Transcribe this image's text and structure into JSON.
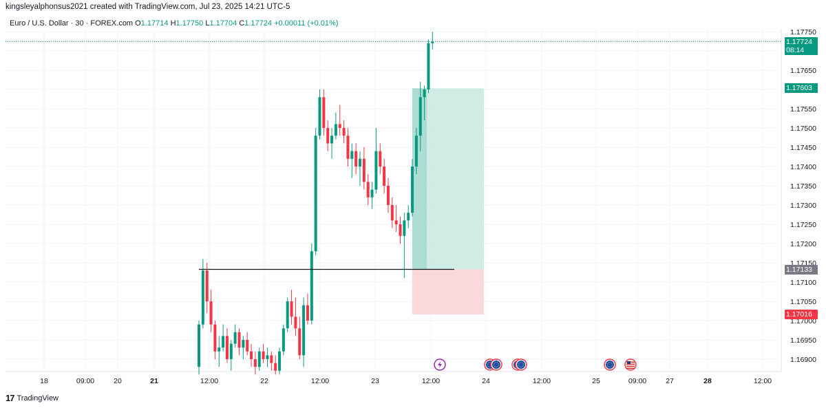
{
  "header": {
    "text": "kingsleyalphonsus2021 created with TradingView.com, Jul 23, 2025 14:21 UTC-5"
  },
  "legend": {
    "symbol": "Euro / U.S. Dollar · 30 · FOREX.com",
    "o_label": "O",
    "o_value": "1.17714",
    "h_label": "H",
    "h_value": "1.17750",
    "l_label": "L",
    "l_value": "1.17704",
    "c_label": "C",
    "c_value": "1.17724",
    "change": "+0.00011 (+0.01%)"
  },
  "footer": {
    "brand": "TradingView",
    "logo": "17"
  },
  "price_labels": {
    "last": {
      "price": "1.17724",
      "countdown": "08:14",
      "color": "#089981"
    },
    "target": {
      "price": "1.17603",
      "color": "#089981"
    },
    "entry": {
      "price": "1.17133",
      "color": "#787b86"
    },
    "stop": {
      "price": "1.17016",
      "color": "#f23645"
    }
  },
  "colors": {
    "up": "#089981",
    "down": "#f23645",
    "profit_zone": "#c8e9df",
    "loss_zone": "#fbd5d7",
    "grid": "#f0f3fa"
  },
  "chart_data": {
    "type": "candlestick",
    "symbol": "EURUSD",
    "interval": "30",
    "ylim": [
      1.1685,
      1.1776
    ],
    "y_ticks": [
      "1.17750",
      "1.17700",
      "1.17650",
      "1.17600",
      "1.17550",
      "1.17500",
      "1.17450",
      "1.17400",
      "1.17350",
      "1.17300",
      "1.17250",
      "1.17200",
      "1.17150",
      "1.17100",
      "1.17050",
      "1.17000",
      "1.16950",
      "1.16900"
    ],
    "x_ticks": [
      "18",
      "09:00",
      "20",
      "21",
      "12:00",
      "22",
      "12:00",
      "23",
      "12:00",
      "24",
      "12:00",
      "25",
      "09:00",
      "27",
      "28",
      "12:00"
    ],
    "bold_x_ticks": [
      "21",
      "28"
    ],
    "current_price": 1.17724,
    "long_position": {
      "entry": 1.17133,
      "target": 1.17603,
      "stop": 1.17016
    },
    "horizontal_line": 1.17133,
    "event_markers": [
      "bolt-icon",
      "flag-eu-icon",
      "flag-eu-icon",
      "flag-eu-icon",
      "flag-eu-icon",
      "flag-eu-icon",
      "flag-us-icon"
    ],
    "candles": [
      [
        1.1688,
        1.17,
        1.1686,
        1.1699
      ],
      [
        1.1699,
        1.1716,
        1.1698,
        1.1713
      ],
      [
        1.1713,
        1.1715,
        1.1702,
        1.1705
      ],
      [
        1.1705,
        1.1708,
        1.1697,
        1.1699
      ],
      [
        1.1699,
        1.17,
        1.169,
        1.1692
      ],
      [
        1.1692,
        1.1696,
        1.1688,
        1.1693
      ],
      [
        1.1693,
        1.1699,
        1.1692,
        1.1696
      ],
      [
        1.1696,
        1.1698,
        1.1689,
        1.169
      ],
      [
        1.169,
        1.1695,
        1.1687,
        1.1694
      ],
      [
        1.1694,
        1.1699,
        1.1693,
        1.1697
      ],
      [
        1.1697,
        1.1698,
        1.1691,
        1.1693
      ],
      [
        1.1693,
        1.1696,
        1.169,
        1.1695
      ],
      [
        1.1695,
        1.1697,
        1.1691,
        1.1692
      ],
      [
        1.1692,
        1.1694,
        1.1688,
        1.169
      ],
      [
        1.169,
        1.1692,
        1.1686,
        1.1688
      ],
      [
        1.1688,
        1.1693,
        1.1687,
        1.1692
      ],
      [
        1.1692,
        1.1694,
        1.1689,
        1.169
      ],
      [
        1.169,
        1.1693,
        1.1688,
        1.1691
      ],
      [
        1.1691,
        1.1692,
        1.1687,
        1.1689
      ],
      [
        1.1689,
        1.1691,
        1.1686,
        1.1687
      ],
      [
        1.1687,
        1.1693,
        1.1686,
        1.1692
      ],
      [
        1.1692,
        1.1699,
        1.1691,
        1.1698
      ],
      [
        1.1698,
        1.1706,
        1.1697,
        1.1705
      ],
      [
        1.1705,
        1.1708,
        1.1699,
        1.1701
      ],
      [
        1.1701,
        1.1706,
        1.1696,
        1.1698
      ],
      [
        1.1698,
        1.1701,
        1.169,
        1.1691
      ],
      [
        1.1691,
        1.1706,
        1.1688,
        1.1704
      ],
      [
        1.1704,
        1.1707,
        1.1699,
        1.17
      ],
      [
        1.17,
        1.172,
        1.1699,
        1.1718
      ],
      [
        1.1718,
        1.175,
        1.1717,
        1.1748
      ],
      [
        1.1748,
        1.176,
        1.1747,
        1.1758
      ],
      [
        1.1758,
        1.176,
        1.1748,
        1.175
      ],
      [
        1.175,
        1.1752,
        1.1744,
        1.1746
      ],
      [
        1.1746,
        1.175,
        1.1742,
        1.1748
      ],
      [
        1.1748,
        1.1754,
        1.1747,
        1.1751
      ],
      [
        1.1751,
        1.1756,
        1.1748,
        1.175
      ],
      [
        1.175,
        1.1752,
        1.1746,
        1.1748
      ],
      [
        1.1748,
        1.175,
        1.174,
        1.1742
      ],
      [
        1.1742,
        1.1746,
        1.1737,
        1.1744
      ],
      [
        1.1744,
        1.1746,
        1.1738,
        1.174
      ],
      [
        1.174,
        1.1744,
        1.1735,
        1.1742
      ],
      [
        1.1742,
        1.1745,
        1.1734,
        1.1736
      ],
      [
        1.1736,
        1.1738,
        1.173,
        1.1732
      ],
      [
        1.1732,
        1.1736,
        1.1729,
        1.1734
      ],
      [
        1.1734,
        1.175,
        1.1733,
        1.1744
      ],
      [
        1.1744,
        1.1746,
        1.1738,
        1.174
      ],
      [
        1.174,
        1.1742,
        1.1733,
        1.1735
      ],
      [
        1.1735,
        1.1737,
        1.1728,
        1.173
      ],
      [
        1.173,
        1.1732,
        1.1724,
        1.1726
      ],
      [
        1.1726,
        1.173,
        1.1723,
        1.1725
      ],
      [
        1.1725,
        1.1727,
        1.172,
        1.1722
      ],
      [
        1.1722,
        1.1728,
        1.1711,
        1.1726
      ],
      [
        1.1726,
        1.173,
        1.1724,
        1.1728
      ],
      [
        1.1728,
        1.1742,
        1.1727,
        1.174
      ],
      [
        1.174,
        1.175,
        1.1738,
        1.1748
      ],
      [
        1.1748,
        1.1762,
        1.1744,
        1.1758
      ],
      [
        1.1758,
        1.1761,
        1.1752,
        1.176
      ],
      [
        1.176,
        1.1773,
        1.1759,
        1.1772
      ],
      [
        1.1772,
        1.1775,
        1.17704,
        1.17724
      ]
    ]
  }
}
